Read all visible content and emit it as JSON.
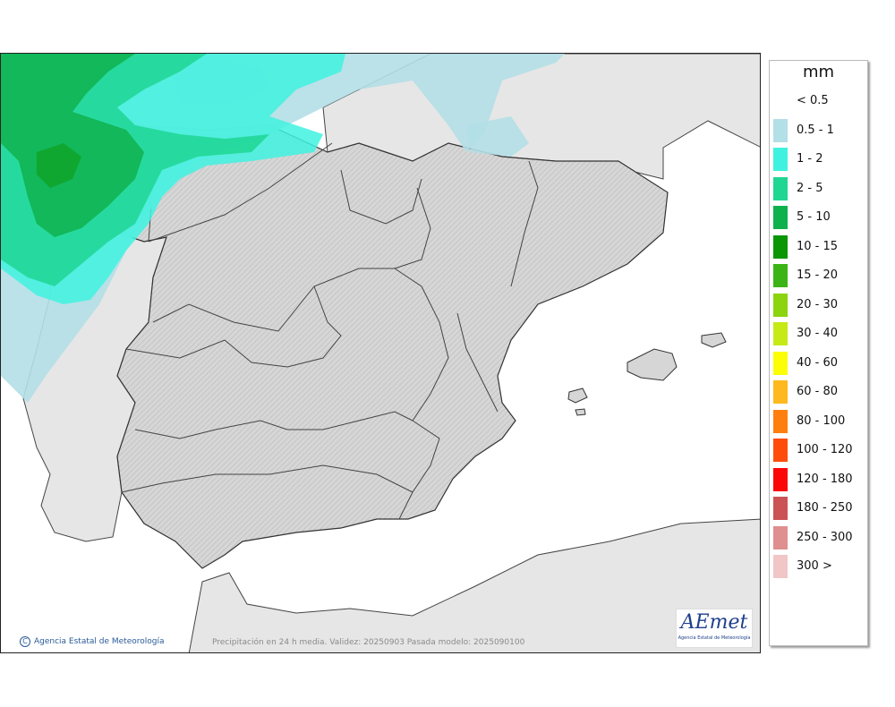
{
  "legend": {
    "unit": "mm",
    "items": [
      {
        "label": "< 0.5",
        "color": "#ffffff"
      },
      {
        "label": "0.5 - 1",
        "color": "#b3dfe6"
      },
      {
        "label": "1 - 2",
        "color": "#3ff2df"
      },
      {
        "label": "2 - 5",
        "color": "#1fd693"
      },
      {
        "label": "5 - 10",
        "color": "#0fb14c"
      },
      {
        "label": "10 - 15",
        "color": "#0b9606"
      },
      {
        "label": "15 - 20",
        "color": "#3cb416"
      },
      {
        "label": "20 - 30",
        "color": "#8bd40e"
      },
      {
        "label": "30 - 40",
        "color": "#c5ea16"
      },
      {
        "label": "40 - 60",
        "color": "#fbfe05"
      },
      {
        "label": "60 - 80",
        "color": "#feb91e"
      },
      {
        "label": "80 - 100",
        "color": "#ff7f0e"
      },
      {
        "label": "100 - 120",
        "color": "#ff4c0b"
      },
      {
        "label": "120 - 180",
        "color": "#fb0707"
      },
      {
        "label": "180 - 250",
        "color": "#cc5353"
      },
      {
        "label": "250 - 300",
        "color": "#df8f8f"
      },
      {
        "label": "300 >",
        "color": "#f0c6c6"
      }
    ]
  },
  "footer": {
    "credit": "Agencia Estatal de Meteorología",
    "caption": "Precipitación en 24 h media. Validez: 20250903 Pasada modelo: 2025090100"
  },
  "logo": {
    "word": "AEmet",
    "subtitle": "Agencia Estatal de Meteorología"
  },
  "colors": {
    "sea": "#ffffff",
    "other_land": "#e6e6e6",
    "peninsula_land": "#d5d5d5",
    "border": "#333333"
  }
}
